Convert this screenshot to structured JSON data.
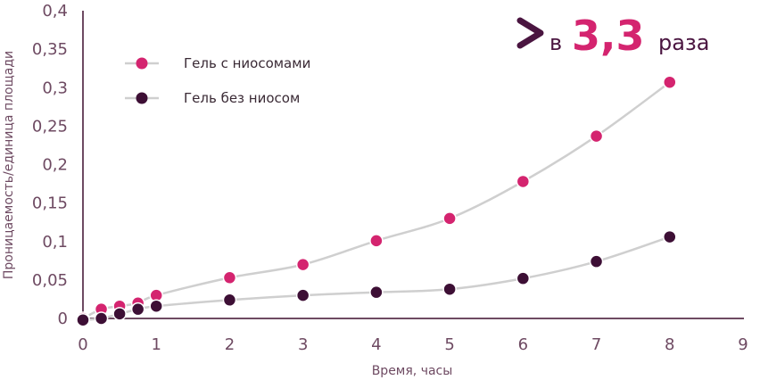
{
  "chart_data": {
    "type": "line",
    "xlabel": "Время, часы",
    "ylabel": "Проницаемость/единица площади",
    "xlim": [
      0,
      9
    ],
    "ylim": [
      0,
      0.4
    ],
    "x_ticks": [
      "0",
      "1",
      "2",
      "3",
      "4",
      "5",
      "6",
      "7",
      "8",
      "9"
    ],
    "y_ticks": [
      "0",
      "0,05",
      "0,1",
      "0,15",
      "0,2",
      "0,25",
      "0,3",
      "0,35",
      "0,4"
    ],
    "grid": false,
    "legend_position": "top-left",
    "series": [
      {
        "name": "Гель с ниосомами",
        "color": "#d4246f",
        "x": [
          0,
          0.25,
          0.5,
          0.75,
          1,
          2,
          3,
          4,
          5,
          6,
          7,
          8
        ],
        "y": [
          0,
          0.012,
          0.016,
          0.02,
          0.03,
          0.053,
          0.07,
          0.101,
          0.13,
          0.178,
          0.237,
          0.307
        ]
      },
      {
        "name": "Гель без ниосом",
        "color": "#3d0f35",
        "x": [
          0,
          0.25,
          0.5,
          0.75,
          1,
          2,
          3,
          4,
          5,
          6,
          7,
          8
        ],
        "y": [
          -0.002,
          0,
          0.006,
          0.012,
          0.016,
          0.024,
          0.03,
          0.034,
          0.038,
          0.052,
          0.074,
          0.106
        ]
      }
    ],
    "annotation": {
      "symbol": ">",
      "prefix": "в",
      "value": "3,3",
      "suffix": "раза"
    }
  }
}
